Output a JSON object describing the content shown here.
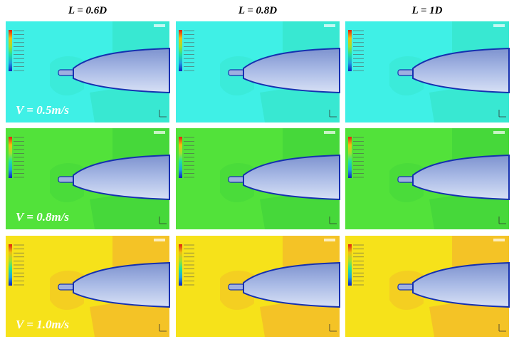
{
  "columns": [
    "L = 0.6D",
    "L = 0.8D",
    "L = 1D"
  ],
  "rows": [
    "V = 0.5m/s",
    "V = 0.8m/s",
    "V = 1.0m/s"
  ]
}
